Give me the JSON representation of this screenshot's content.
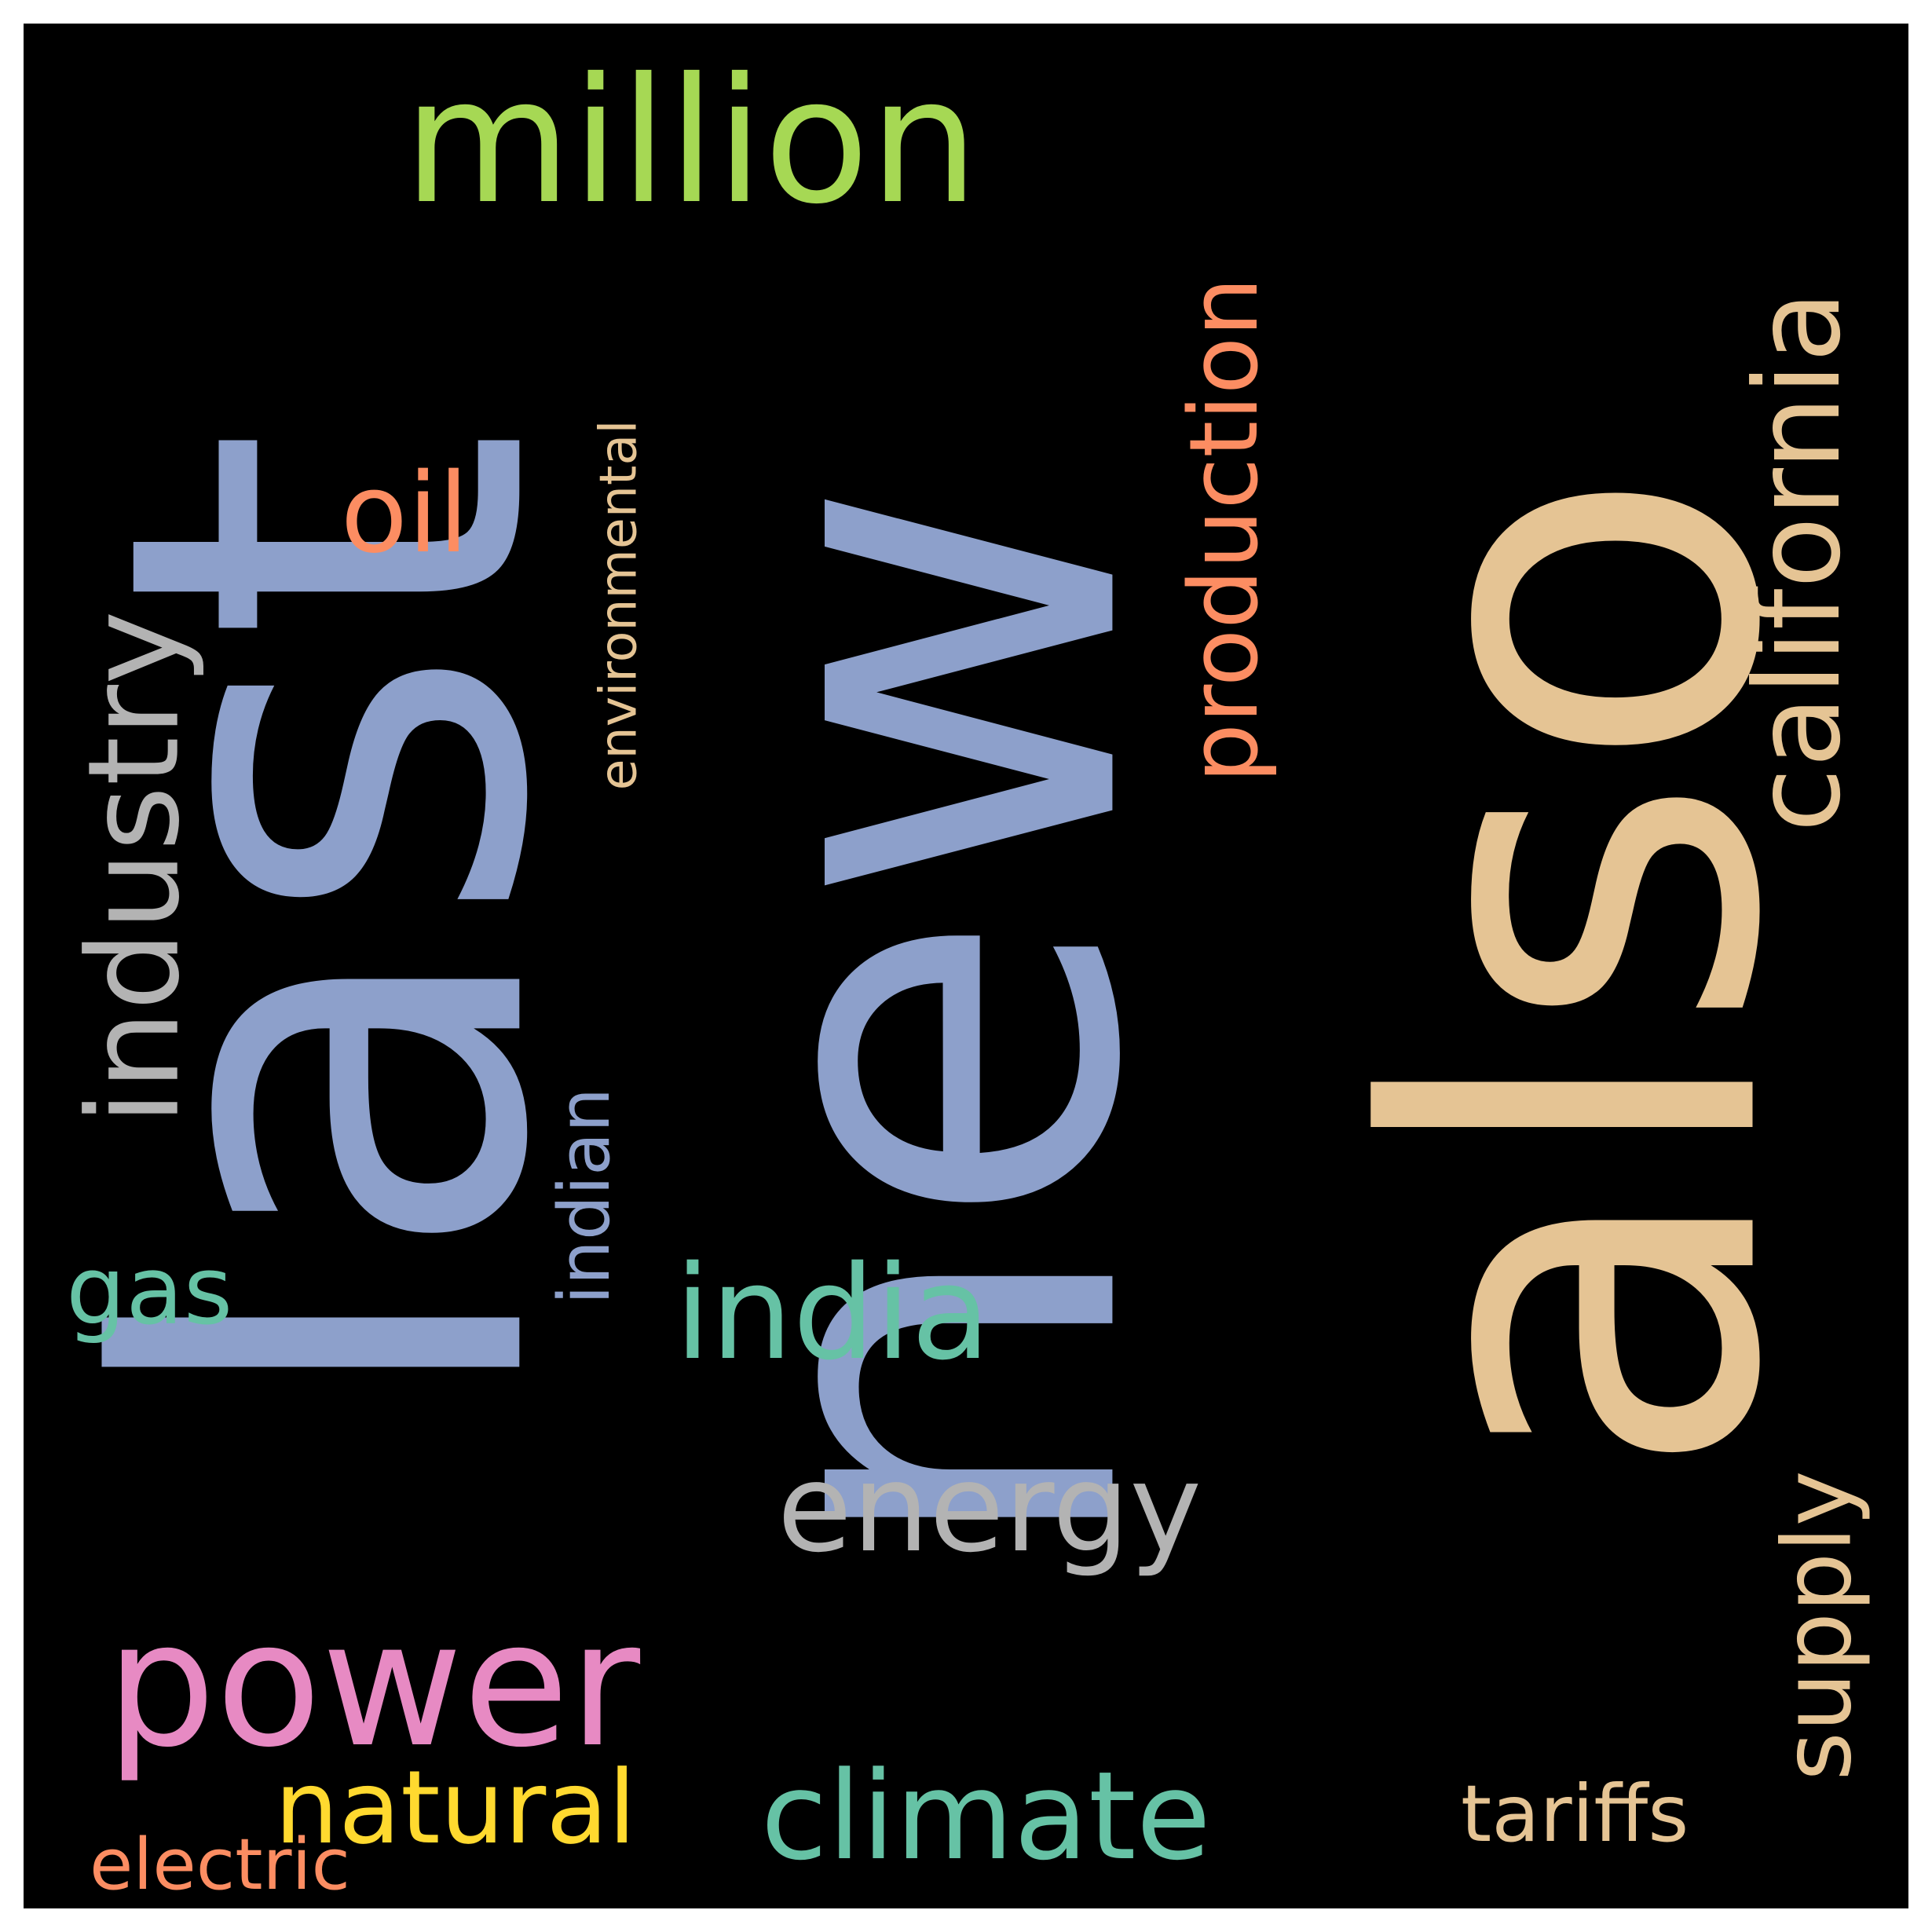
{
  "background_color": "#000000",
  "words": [
    {
      "id": "also",
      "text": "also",
      "color": "#E5C494",
      "rotated": true
    },
    {
      "id": "new",
      "text": "new",
      "color": "#8DA0CB",
      "rotated": true
    },
    {
      "id": "last",
      "text": "last",
      "color": "#8DA0CB",
      "rotated": true
    },
    {
      "id": "million",
      "text": "million",
      "color": "#A6D854",
      "rotated": false
    },
    {
      "id": "california",
      "text": "california",
      "color": "#E5C494",
      "rotated": true
    },
    {
      "id": "production",
      "text": "production",
      "color": "#FC8D62",
      "rotated": true
    },
    {
      "id": "power",
      "text": "power",
      "color": "#E78AC3",
      "rotated": false
    },
    {
      "id": "industry",
      "text": "industry",
      "color": "#B3B3B3",
      "rotated": true
    },
    {
      "id": "india",
      "text": "india",
      "color": "#66C2A5",
      "rotated": false
    },
    {
      "id": "energy",
      "text": "energy",
      "color": "#B3B3B3",
      "rotated": false
    },
    {
      "id": "climate",
      "text": "climate",
      "color": "#66C2A5",
      "rotated": false
    },
    {
      "id": "supply",
      "text": "supply",
      "color": "#E5C494",
      "rotated": true
    },
    {
      "id": "oil",
      "text": "oil",
      "color": "#FC8D62",
      "rotated": false
    },
    {
      "id": "environmental",
      "text": "environmental",
      "color": "#E5C494",
      "rotated": true
    },
    {
      "id": "gas",
      "text": "gas",
      "color": "#66C2A5",
      "rotated": false
    },
    {
      "id": "indian",
      "text": "indian",
      "color": "#8DA0CB",
      "rotated": true
    },
    {
      "id": "natural",
      "text": "natural",
      "color": "#FFD92F",
      "rotated": false
    },
    {
      "id": "tariffs",
      "text": "tariffs",
      "color": "#E5C494",
      "rotated": false
    },
    {
      "id": "electric",
      "text": "electric",
      "color": "#FC8D62",
      "rotated": false
    }
  ]
}
